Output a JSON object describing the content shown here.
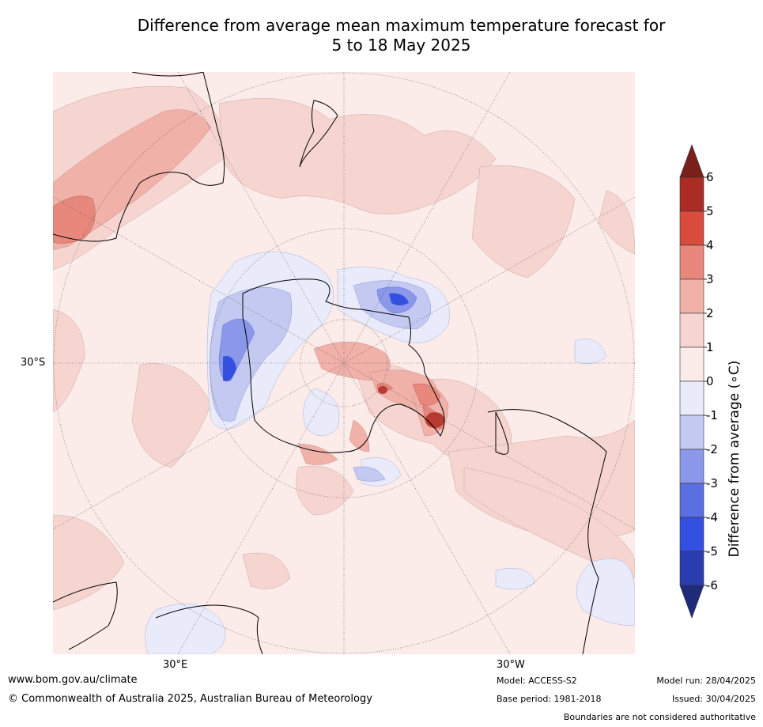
{
  "title": {
    "line1": "Difference from average mean maximum temperature forecast for",
    "line2": "5 to 18 May 2025"
  },
  "map": {
    "lat_label": "30°S",
    "lon_labels": [
      "30°E",
      "30°W"
    ]
  },
  "colorbar": {
    "label": "Difference from average (∘C)",
    "ticks": [
      "6",
      "5",
      "4",
      "3",
      "2",
      "1",
      "0",
      "-1",
      "-2",
      "-3",
      "-4",
      "-5",
      "-6"
    ],
    "colors": [
      "#7a1f1a",
      "#a92d25",
      "#d94c3d",
      "#e8877c",
      "#efb1a8",
      "#f6d5d0",
      "#fbebe9",
      "#e9ebfb",
      "#c3c9f1",
      "#8b98ea",
      "#5a6fe0",
      "#3450e0",
      "#2a3caf",
      "#1e2a7a"
    ]
  },
  "footer": {
    "url": "www.bom.gov.au/climate",
    "copyright": "© Commonwealth of Australia 2025, Australian Bureau of Meteorology",
    "model": "Model: ACCESS-S2",
    "base_period": "Base period: 1981-2018",
    "model_run": "Model run: 28/04/2025",
    "issued": "Issued: 30/04/2025",
    "disclaimer": "Boundaries are not considered authoritative"
  }
}
